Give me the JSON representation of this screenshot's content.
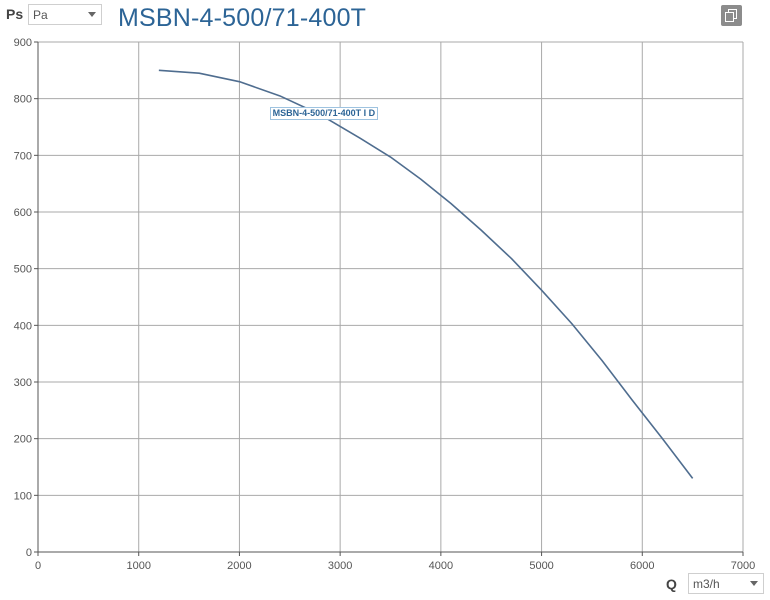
{
  "header": {
    "y_symbol": "Ps",
    "pressure_unit": "Pa",
    "title": "MSBN-4-500/71-400T"
  },
  "footer": {
    "x_symbol": "Q",
    "flow_unit": "m3/h"
  },
  "icons": {
    "copy": "copy-icon"
  },
  "chart_data": {
    "type": "line",
    "title": "MSBN-4-500/71-400T",
    "xlabel": "Q",
    "ylabel": "Ps",
    "xlim": [
      0,
      7000
    ],
    "ylim": [
      0,
      900
    ],
    "xticks": [
      0,
      1000,
      2000,
      3000,
      4000,
      5000,
      6000,
      7000
    ],
    "yticks": [
      0,
      100,
      200,
      300,
      400,
      500,
      600,
      700,
      800,
      900
    ],
    "grid": true,
    "series": [
      {
        "name": "MSBN-4-500/71-400T I D",
        "color": "#4f6d8f",
        "x": [
          1200,
          1600,
          2000,
          2400,
          2800,
          3200,
          3500,
          3800,
          4100,
          4400,
          4700,
          5000,
          5300,
          5600,
          5900,
          6200,
          6500
        ],
        "y": [
          850,
          845,
          830,
          805,
          772,
          730,
          697,
          658,
          615,
          568,
          518,
          462,
          403,
          338,
          268,
          200,
          130
        ]
      }
    ]
  }
}
